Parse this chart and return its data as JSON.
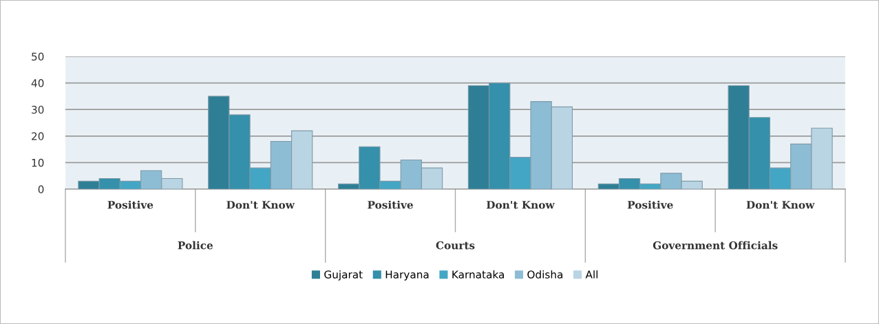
{
  "chart_data": {
    "type": "bar",
    "categories": [
      "Positive",
      "Don't Know",
      "Positive",
      "Don't Know",
      "Positive",
      "Don't Know"
    ],
    "series": [
      {
        "name": "Gujarat",
        "color": "#2e7f96",
        "values": [
          3,
          35,
          2,
          39,
          2,
          39
        ]
      },
      {
        "name": "Haryana",
        "color": "#3490ab",
        "values": [
          4,
          28,
          16,
          40,
          4,
          27
        ]
      },
      {
        "name": "Karnataka",
        "color": "#43a6c4",
        "values": [
          3,
          8,
          3,
          12,
          2,
          8
        ]
      },
      {
        "name": "Odisha",
        "color": "#8dbdd4",
        "values": [
          7,
          18,
          11,
          33,
          6,
          17
        ]
      },
      {
        "name": "All",
        "color": "#b9d4e3",
        "values": [
          4,
          22,
          8,
          31,
          3,
          23
        ]
      }
    ],
    "annotations": [
      "Police",
      "Courts",
      "Government Officials"
    ],
    "ylim": [
      0,
      50
    ],
    "yticks": [
      0,
      10,
      20,
      30,
      40,
      50
    ],
    "grid": "y",
    "legend": "bottom"
  }
}
